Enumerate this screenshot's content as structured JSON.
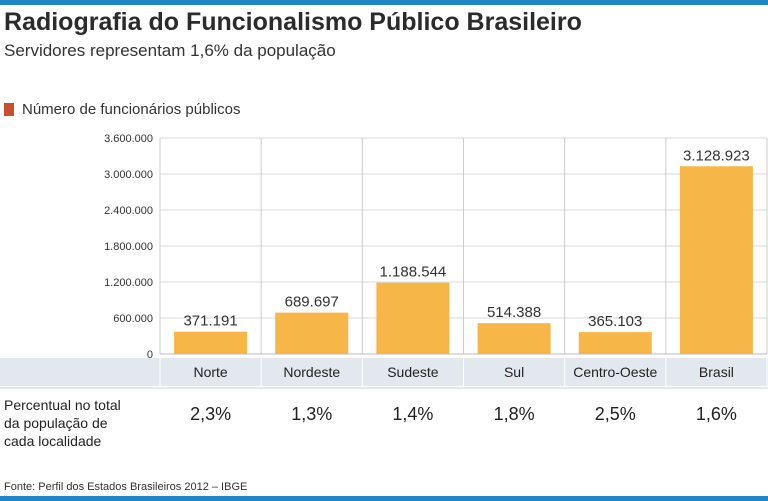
{
  "header": {
    "title": "Radiografia do Funcionalismo Público Brasileiro",
    "subtitle": "Servidores representam 1,6% da população"
  },
  "legend": {
    "label": "Número de funcionários públicos",
    "color": "#c8502d"
  },
  "table": {
    "row_label_lines": [
      "Percentual no total",
      "da população de",
      "cada localidade"
    ]
  },
  "source": "Fonte: Perfil dos Estados Brasileiros 2012 – IBGE",
  "colors": {
    "bar": "#f7b648",
    "band": "#e3e8ef",
    "accent": "#1f86c8"
  },
  "chart_data": {
    "type": "bar",
    "title": "Radiografia do Funcionalismo Público Brasileiro",
    "subtitle": "Servidores representam 1,6% da população",
    "categories": [
      "Norte",
      "Nordeste",
      "Sudeste",
      "Sul",
      "Centro-Oeste",
      "Brasil"
    ],
    "values": [
      371191,
      689697,
      1188544,
      514388,
      365103,
      3128923
    ],
    "value_labels": [
      "371.191",
      "689.697",
      "1.188.544",
      "514.388",
      "365.103",
      "3.128.923"
    ],
    "percent_labels": [
      "2,3%",
      "1,3%",
      "1,4%",
      "1,8%",
      "2,5%",
      "1,6%"
    ],
    "series": [
      {
        "name": "Número de funcionários públicos",
        "values": [
          371191,
          689697,
          1188544,
          514388,
          365103,
          3128923
        ]
      }
    ],
    "yticks": [
      0,
      600000,
      1200000,
      1800000,
      2400000,
      3000000,
      3600000
    ],
    "ytick_labels": [
      "0",
      "600.000",
      "1.200.000",
      "1.800.000",
      "2.400.000",
      "3.000.000",
      "3.600.000"
    ],
    "ylim": [
      0,
      3600000
    ],
    "xlabel": "",
    "ylabel": "",
    "grid": true,
    "legend_position": "top-left"
  }
}
